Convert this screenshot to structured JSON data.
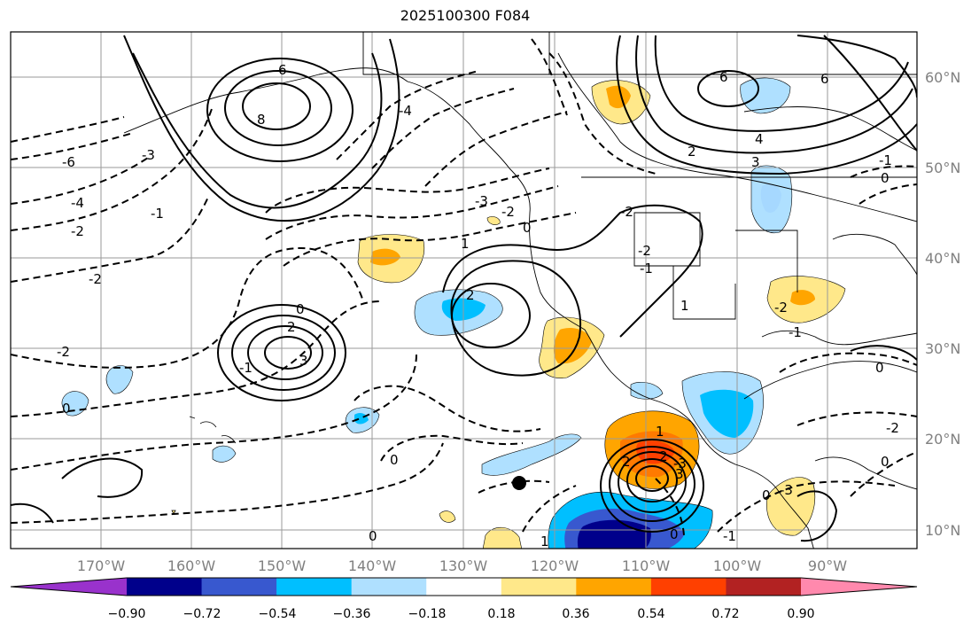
{
  "title": "2025100300 F084",
  "map": {
    "projection": "lat-lon",
    "lon_range": [
      -180,
      -80
    ],
    "lat_range": [
      8,
      66
    ],
    "grid": true,
    "marker": "black dot"
  },
  "lon_ticks": [
    "170°W",
    "160°W",
    "150°W",
    "140°W",
    "130°W",
    "120°W",
    "110°W",
    "100°W",
    "90°W"
  ],
  "lat_ticks": [
    "60°N",
    "50°N",
    "40°N",
    "30°N",
    "20°N",
    "10°N"
  ],
  "contour_labels": [
    "-6",
    "-4",
    "-2",
    "-2",
    "-3",
    "-1",
    "0",
    "0",
    "2",
    "3",
    "-2",
    "6",
    "8",
    "-4",
    "-2",
    "-3",
    "0",
    "-2",
    "-1",
    "2",
    "-2",
    "1",
    "-1",
    "0",
    "6",
    "4",
    "6",
    "3",
    "2",
    "-2",
    "1",
    "-1",
    "-2",
    "0",
    "0",
    "0",
    "-3",
    "2",
    "0",
    "1",
    "-1",
    "-3",
    "0",
    "-1",
    "0",
    "1",
    "2",
    "3"
  ],
  "colorbar": {
    "ticks": [
      "−0.90",
      "−0.72",
      "−0.54",
      "−0.36",
      "−0.18",
      "0.18",
      "0.36",
      "0.54",
      "0.72",
      "0.90"
    ],
    "colors": [
      "#9932cc",
      "#00008b",
      "#3858cf",
      "#00bfff",
      "#afe0ff",
      "#ffffff",
      "#ffe88a",
      "#ffa500",
      "#ff4000",
      "#b22222",
      "#ff89ad"
    ],
    "extend": "both"
  }
}
